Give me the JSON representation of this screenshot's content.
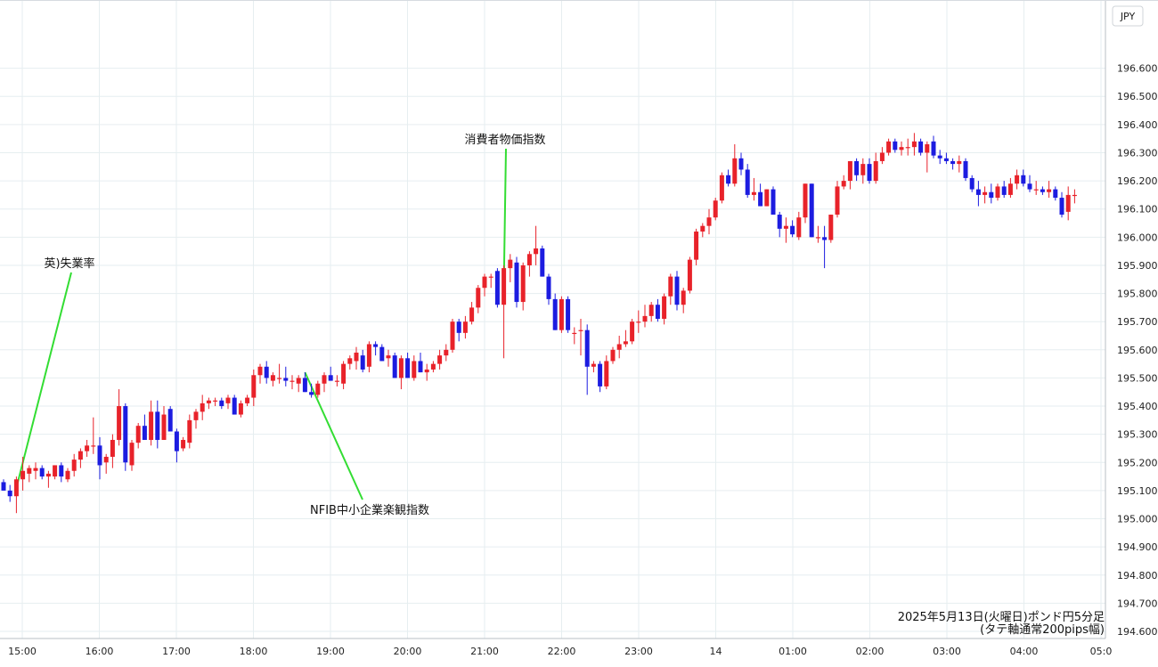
{
  "chart_data": {
    "type": "candlestick",
    "interval": "5分足",
    "currency_label": "JPY",
    "caption_line1": "2025年5月13日(火曜日)ポンド円5分足",
    "caption_line2": "(タテ軸通常200pips幅)",
    "ylim": [
      194.6,
      196.7
    ],
    "y_ticks": [
      "196.600",
      "196.500",
      "196.400",
      "196.300",
      "196.200",
      "196.100",
      "196.000",
      "195.900",
      "195.800",
      "195.700",
      "195.600",
      "195.500",
      "195.400",
      "195.300",
      "195.200",
      "195.100",
      "195.000",
      "194.900",
      "194.800",
      "194.700",
      "194.600"
    ],
    "x_ticks": [
      "15:00",
      "16:00",
      "17:00",
      "18:00",
      "19:00",
      "20:00",
      "21:00",
      "22:00",
      "23:00",
      "14",
      "01:00",
      "02:00",
      "03:00",
      "04:00",
      "05:0"
    ],
    "grid": true,
    "colors": {
      "up": "#e8222a",
      "down": "#1c1ce0",
      "annotation_line": "#33dd33",
      "grid": "#e6eef0"
    },
    "annotations": [
      {
        "label": "英)失業率",
        "candle_index": 2
      },
      {
        "label": "NFIB中小企業楽観指数",
        "candle_index": 47
      },
      {
        "label": "消費者物価指数",
        "candle_index": 78
      }
    ],
    "candles": [
      {
        "o": 195.13,
        "h": 195.14,
        "l": 195.1,
        "c": 195.1
      },
      {
        "o": 195.1,
        "h": 195.12,
        "l": 195.06,
        "c": 195.08
      },
      {
        "o": 195.08,
        "h": 195.15,
        "l": 195.02,
        "c": 195.14
      },
      {
        "o": 195.14,
        "h": 195.22,
        "l": 195.1,
        "c": 195.17
      },
      {
        "o": 195.16,
        "h": 195.19,
        "l": 195.13,
        "c": 195.18
      },
      {
        "o": 195.17,
        "h": 195.2,
        "l": 195.14,
        "c": 195.18
      },
      {
        "o": 195.18,
        "h": 195.19,
        "l": 195.14,
        "c": 195.15
      },
      {
        "o": 195.15,
        "h": 195.17,
        "l": 195.11,
        "c": 195.16
      },
      {
        "o": 195.15,
        "h": 195.19,
        "l": 195.14,
        "c": 195.19
      },
      {
        "o": 195.19,
        "h": 195.2,
        "l": 195.13,
        "c": 195.15
      },
      {
        "o": 195.14,
        "h": 195.18,
        "l": 195.13,
        "c": 195.17
      },
      {
        "o": 195.17,
        "h": 195.23,
        "l": 195.15,
        "c": 195.21
      },
      {
        "o": 195.21,
        "h": 195.25,
        "l": 195.18,
        "c": 195.24
      },
      {
        "o": 195.24,
        "h": 195.28,
        "l": 195.22,
        "c": 195.26
      },
      {
        "o": 195.26,
        "h": 195.36,
        "l": 195.23,
        "c": 195.26
      },
      {
        "o": 195.26,
        "h": 195.29,
        "l": 195.14,
        "c": 195.19
      },
      {
        "o": 195.2,
        "h": 195.23,
        "l": 195.16,
        "c": 195.22
      },
      {
        "o": 195.22,
        "h": 195.3,
        "l": 195.18,
        "c": 195.28
      },
      {
        "o": 195.28,
        "h": 195.46,
        "l": 195.26,
        "c": 195.4
      },
      {
        "o": 195.4,
        "h": 195.41,
        "l": 195.17,
        "c": 195.2
      },
      {
        "o": 195.19,
        "h": 195.28,
        "l": 195.17,
        "c": 195.27
      },
      {
        "o": 195.27,
        "h": 195.34,
        "l": 195.25,
        "c": 195.33
      },
      {
        "o": 195.33,
        "h": 195.37,
        "l": 195.28,
        "c": 195.28
      },
      {
        "o": 195.28,
        "h": 195.42,
        "l": 195.26,
        "c": 195.38
      },
      {
        "o": 195.38,
        "h": 195.42,
        "l": 195.25,
        "c": 195.28
      },
      {
        "o": 195.28,
        "h": 195.4,
        "l": 195.28,
        "c": 195.37
      },
      {
        "o": 195.39,
        "h": 195.4,
        "l": 195.31,
        "c": 195.31
      },
      {
        "o": 195.31,
        "h": 195.32,
        "l": 195.2,
        "c": 195.24
      },
      {
        "o": 195.25,
        "h": 195.29,
        "l": 195.24,
        "c": 195.28
      },
      {
        "o": 195.27,
        "h": 195.37,
        "l": 195.25,
        "c": 195.35
      },
      {
        "o": 195.35,
        "h": 195.39,
        "l": 195.32,
        "c": 195.38
      },
      {
        "o": 195.38,
        "h": 195.44,
        "l": 195.35,
        "c": 195.41
      },
      {
        "o": 195.41,
        "h": 195.43,
        "l": 195.39,
        "c": 195.42
      },
      {
        "o": 195.42,
        "h": 195.43,
        "l": 195.4,
        "c": 195.42
      },
      {
        "o": 195.42,
        "h": 195.43,
        "l": 195.39,
        "c": 195.4
      },
      {
        "o": 195.41,
        "h": 195.44,
        "l": 195.39,
        "c": 195.43
      },
      {
        "o": 195.43,
        "h": 195.44,
        "l": 195.37,
        "c": 195.37
      },
      {
        "o": 195.37,
        "h": 195.42,
        "l": 195.36,
        "c": 195.41
      },
      {
        "o": 195.41,
        "h": 195.44,
        "l": 195.4,
        "c": 195.43
      },
      {
        "o": 195.43,
        "h": 195.53,
        "l": 195.4,
        "c": 195.51
      },
      {
        "o": 195.51,
        "h": 195.55,
        "l": 195.48,
        "c": 195.54
      },
      {
        "o": 195.54,
        "h": 195.56,
        "l": 195.48,
        "c": 195.5
      },
      {
        "o": 195.49,
        "h": 195.52,
        "l": 195.47,
        "c": 195.51
      },
      {
        "o": 195.5,
        "h": 195.55,
        "l": 195.48,
        "c": 195.5
      },
      {
        "o": 195.5,
        "h": 195.54,
        "l": 195.47,
        "c": 195.49
      },
      {
        "o": 195.49,
        "h": 195.51,
        "l": 195.46,
        "c": 195.49
      },
      {
        "o": 195.48,
        "h": 195.51,
        "l": 195.45,
        "c": 195.5
      },
      {
        "o": 195.5,
        "h": 195.52,
        "l": 195.45,
        "c": 195.45
      },
      {
        "o": 195.45,
        "h": 195.48,
        "l": 195.43,
        "c": 195.44
      },
      {
        "o": 195.44,
        "h": 195.49,
        "l": 195.43,
        "c": 195.48
      },
      {
        "o": 195.48,
        "h": 195.52,
        "l": 195.45,
        "c": 195.51
      },
      {
        "o": 195.51,
        "h": 195.54,
        "l": 195.49,
        "c": 195.49
      },
      {
        "o": 195.49,
        "h": 195.51,
        "l": 195.47,
        "c": 195.49
      },
      {
        "o": 195.48,
        "h": 195.56,
        "l": 195.46,
        "c": 195.55
      },
      {
        "o": 195.55,
        "h": 195.58,
        "l": 195.53,
        "c": 195.57
      },
      {
        "o": 195.56,
        "h": 195.61,
        "l": 195.53,
        "c": 195.59
      },
      {
        "o": 195.58,
        "h": 195.6,
        "l": 195.52,
        "c": 195.53
      },
      {
        "o": 195.54,
        "h": 195.63,
        "l": 195.52,
        "c": 195.62
      },
      {
        "o": 195.62,
        "h": 195.63,
        "l": 195.58,
        "c": 195.61
      },
      {
        "o": 195.61,
        "h": 195.62,
        "l": 195.56,
        "c": 195.56
      },
      {
        "o": 195.57,
        "h": 195.6,
        "l": 195.54,
        "c": 195.58
      },
      {
        "o": 195.58,
        "h": 195.59,
        "l": 195.5,
        "c": 195.5
      },
      {
        "o": 195.5,
        "h": 195.58,
        "l": 195.46,
        "c": 195.57
      },
      {
        "o": 195.57,
        "h": 195.59,
        "l": 195.5,
        "c": 195.5
      },
      {
        "o": 195.5,
        "h": 195.58,
        "l": 195.49,
        "c": 195.56
      },
      {
        "o": 195.56,
        "h": 195.59,
        "l": 195.52,
        "c": 195.52
      },
      {
        "o": 195.52,
        "h": 195.55,
        "l": 195.49,
        "c": 195.53
      },
      {
        "o": 195.53,
        "h": 195.56,
        "l": 195.52,
        "c": 195.55
      },
      {
        "o": 195.55,
        "h": 195.6,
        "l": 195.53,
        "c": 195.58
      },
      {
        "o": 195.58,
        "h": 195.62,
        "l": 195.56,
        "c": 195.6
      },
      {
        "o": 195.6,
        "h": 195.71,
        "l": 195.59,
        "c": 195.7
      },
      {
        "o": 195.7,
        "h": 195.71,
        "l": 195.63,
        "c": 195.66
      },
      {
        "o": 195.66,
        "h": 195.72,
        "l": 195.64,
        "c": 195.7
      },
      {
        "o": 195.7,
        "h": 195.77,
        "l": 195.69,
        "c": 195.75
      },
      {
        "o": 195.75,
        "h": 195.83,
        "l": 195.73,
        "c": 195.82
      },
      {
        "o": 195.82,
        "h": 195.87,
        "l": 195.79,
        "c": 195.86
      },
      {
        "o": 195.86,
        "h": 195.87,
        "l": 195.82,
        "c": 195.86
      },
      {
        "o": 195.88,
        "h": 195.89,
        "l": 195.75,
        "c": 195.76
      },
      {
        "o": 195.76,
        "h": 195.9,
        "l": 195.57,
        "c": 195.89
      },
      {
        "o": 195.89,
        "h": 195.94,
        "l": 195.84,
        "c": 195.92
      },
      {
        "o": 195.91,
        "h": 195.93,
        "l": 195.75,
        "c": 195.77
      },
      {
        "o": 195.77,
        "h": 195.91,
        "l": 195.74,
        "c": 195.9
      },
      {
        "o": 195.9,
        "h": 195.95,
        "l": 195.86,
        "c": 195.94
      },
      {
        "o": 195.94,
        "h": 196.04,
        "l": 195.9,
        "c": 195.96
      },
      {
        "o": 195.96,
        "h": 195.97,
        "l": 195.86,
        "c": 195.86
      },
      {
        "o": 195.86,
        "h": 195.87,
        "l": 195.76,
        "c": 195.78
      },
      {
        "o": 195.78,
        "h": 195.8,
        "l": 195.67,
        "c": 195.67
      },
      {
        "o": 195.67,
        "h": 195.79,
        "l": 195.66,
        "c": 195.78
      },
      {
        "o": 195.78,
        "h": 195.79,
        "l": 195.66,
        "c": 195.67
      },
      {
        "o": 195.66,
        "h": 195.68,
        "l": 195.62,
        "c": 195.66
      },
      {
        "o": 195.67,
        "h": 195.71,
        "l": 195.58,
        "c": 195.67
      },
      {
        "o": 195.67,
        "h": 195.69,
        "l": 195.44,
        "c": 195.54
      },
      {
        "o": 195.54,
        "h": 195.56,
        "l": 195.52,
        "c": 195.55
      },
      {
        "o": 195.55,
        "h": 195.56,
        "l": 195.45,
        "c": 195.47
      },
      {
        "o": 195.47,
        "h": 195.58,
        "l": 195.46,
        "c": 195.56
      },
      {
        "o": 195.56,
        "h": 195.61,
        "l": 195.55,
        "c": 195.6
      },
      {
        "o": 195.6,
        "h": 195.65,
        "l": 195.57,
        "c": 195.62
      },
      {
        "o": 195.62,
        "h": 195.67,
        "l": 195.61,
        "c": 195.63
      },
      {
        "o": 195.63,
        "h": 195.71,
        "l": 195.62,
        "c": 195.7
      },
      {
        "o": 195.7,
        "h": 195.74,
        "l": 195.66,
        "c": 195.7
      },
      {
        "o": 195.7,
        "h": 195.76,
        "l": 195.68,
        "c": 195.72
      },
      {
        "o": 195.72,
        "h": 195.77,
        "l": 195.7,
        "c": 195.76
      },
      {
        "o": 195.76,
        "h": 195.78,
        "l": 195.7,
        "c": 195.71
      },
      {
        "o": 195.71,
        "h": 195.8,
        "l": 195.69,
        "c": 195.79
      },
      {
        "o": 195.79,
        "h": 195.87,
        "l": 195.76,
        "c": 195.86
      },
      {
        "o": 195.86,
        "h": 195.88,
        "l": 195.74,
        "c": 195.76
      },
      {
        "o": 195.76,
        "h": 195.82,
        "l": 195.73,
        "c": 195.81
      },
      {
        "o": 195.81,
        "h": 195.93,
        "l": 195.8,
        "c": 195.92
      },
      {
        "o": 195.92,
        "h": 196.03,
        "l": 195.9,
        "c": 196.02
      },
      {
        "o": 196.02,
        "h": 196.05,
        "l": 196.0,
        "c": 196.04
      },
      {
        "o": 196.04,
        "h": 196.1,
        "l": 196.01,
        "c": 196.07
      },
      {
        "o": 196.07,
        "h": 196.14,
        "l": 196.06,
        "c": 196.13
      },
      {
        "o": 196.13,
        "h": 196.23,
        "l": 196.12,
        "c": 196.22
      },
      {
        "o": 196.22,
        "h": 196.24,
        "l": 196.18,
        "c": 196.19
      },
      {
        "o": 196.19,
        "h": 196.33,
        "l": 196.18,
        "c": 196.28
      },
      {
        "o": 196.28,
        "h": 196.3,
        "l": 196.22,
        "c": 196.24
      },
      {
        "o": 196.24,
        "h": 196.26,
        "l": 196.14,
        "c": 196.15
      },
      {
        "o": 196.15,
        "h": 196.21,
        "l": 196.13,
        "c": 196.16
      },
      {
        "o": 196.16,
        "h": 196.19,
        "l": 196.11,
        "c": 196.11
      },
      {
        "o": 196.11,
        "h": 196.17,
        "l": 196.11,
        "c": 196.17
      },
      {
        "o": 196.17,
        "h": 196.18,
        "l": 196.08,
        "c": 196.08
      },
      {
        "o": 196.08,
        "h": 196.09,
        "l": 196.0,
        "c": 196.03
      },
      {
        "o": 196.03,
        "h": 196.07,
        "l": 195.98,
        "c": 196.04
      },
      {
        "o": 196.04,
        "h": 196.06,
        "l": 196.0,
        "c": 196.01
      },
      {
        "o": 196.0,
        "h": 196.09,
        "l": 195.99,
        "c": 196.07
      },
      {
        "o": 196.07,
        "h": 196.19,
        "l": 196.05,
        "c": 196.19
      },
      {
        "o": 196.19,
        "h": 196.19,
        "l": 196.0,
        "c": 196.0
      },
      {
        "o": 196.0,
        "h": 196.04,
        "l": 195.98,
        "c": 196.0
      },
      {
        "o": 196.0,
        "h": 196.04,
        "l": 195.89,
        "c": 195.99
      },
      {
        "o": 195.99,
        "h": 196.08,
        "l": 195.98,
        "c": 196.08
      },
      {
        "o": 196.08,
        "h": 196.2,
        "l": 196.07,
        "c": 196.18
      },
      {
        "o": 196.18,
        "h": 196.22,
        "l": 196.17,
        "c": 196.2
      },
      {
        "o": 196.2,
        "h": 196.27,
        "l": 196.17,
        "c": 196.27
      },
      {
        "o": 196.27,
        "h": 196.28,
        "l": 196.2,
        "c": 196.22
      },
      {
        "o": 196.22,
        "h": 196.28,
        "l": 196.19,
        "c": 196.26
      },
      {
        "o": 196.26,
        "h": 196.28,
        "l": 196.19,
        "c": 196.2
      },
      {
        "o": 196.2,
        "h": 196.3,
        "l": 196.19,
        "c": 196.27
      },
      {
        "o": 196.27,
        "h": 196.32,
        "l": 196.26,
        "c": 196.3
      },
      {
        "o": 196.3,
        "h": 196.35,
        "l": 196.29,
        "c": 196.34
      },
      {
        "o": 196.34,
        "h": 196.35,
        "l": 196.3,
        "c": 196.31
      },
      {
        "o": 196.31,
        "h": 196.34,
        "l": 196.29,
        "c": 196.32
      },
      {
        "o": 196.32,
        "h": 196.35,
        "l": 196.29,
        "c": 196.32
      },
      {
        "o": 196.32,
        "h": 196.37,
        "l": 196.29,
        "c": 196.34
      },
      {
        "o": 196.34,
        "h": 196.35,
        "l": 196.29,
        "c": 196.3
      },
      {
        "o": 196.3,
        "h": 196.34,
        "l": 196.23,
        "c": 196.33
      },
      {
        "o": 196.34,
        "h": 196.36,
        "l": 196.28,
        "c": 196.29
      },
      {
        "o": 196.29,
        "h": 196.31,
        "l": 196.26,
        "c": 196.28
      },
      {
        "o": 196.28,
        "h": 196.3,
        "l": 196.26,
        "c": 196.27
      },
      {
        "o": 196.27,
        "h": 196.28,
        "l": 196.24,
        "c": 196.26
      },
      {
        "o": 196.26,
        "h": 196.29,
        "l": 196.23,
        "c": 196.27
      },
      {
        "o": 196.27,
        "h": 196.28,
        "l": 196.2,
        "c": 196.21
      },
      {
        "o": 196.21,
        "h": 196.22,
        "l": 196.16,
        "c": 196.17
      },
      {
        "o": 196.17,
        "h": 196.2,
        "l": 196.11,
        "c": 196.15
      },
      {
        "o": 196.15,
        "h": 196.18,
        "l": 196.12,
        "c": 196.16
      },
      {
        "o": 196.16,
        "h": 196.19,
        "l": 196.12,
        "c": 196.14
      },
      {
        "o": 196.14,
        "h": 196.19,
        "l": 196.13,
        "c": 196.18
      },
      {
        "o": 196.18,
        "h": 196.2,
        "l": 196.14,
        "c": 196.15
      },
      {
        "o": 196.15,
        "h": 196.21,
        "l": 196.14,
        "c": 196.19
      },
      {
        "o": 196.19,
        "h": 196.24,
        "l": 196.17,
        "c": 196.22
      },
      {
        "o": 196.22,
        "h": 196.24,
        "l": 196.18,
        "c": 196.19
      },
      {
        "o": 196.19,
        "h": 196.22,
        "l": 196.16,
        "c": 196.17
      },
      {
        "o": 196.17,
        "h": 196.2,
        "l": 196.15,
        "c": 196.17
      },
      {
        "o": 196.17,
        "h": 196.18,
        "l": 196.15,
        "c": 196.16
      },
      {
        "o": 196.16,
        "h": 196.2,
        "l": 196.14,
        "c": 196.17
      },
      {
        "o": 196.17,
        "h": 196.18,
        "l": 196.13,
        "c": 196.14
      },
      {
        "o": 196.14,
        "h": 196.16,
        "l": 196.07,
        "c": 196.08
      },
      {
        "o": 196.09,
        "h": 196.18,
        "l": 196.06,
        "c": 196.15
      },
      {
        "o": 196.15,
        "h": 196.17,
        "l": 196.12,
        "c": 196.15
      }
    ]
  }
}
